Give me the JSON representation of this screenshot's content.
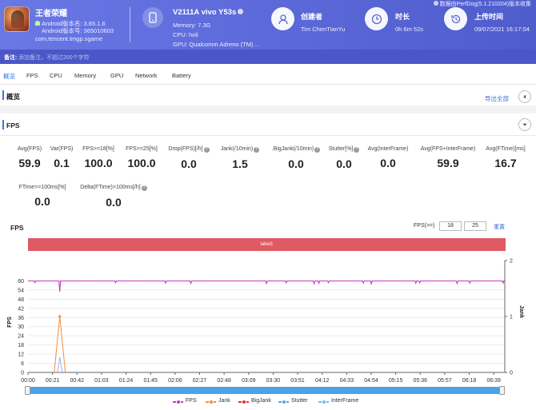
{
  "header": {
    "app_name": "王者荣耀",
    "android_version": "Android版本名: 3.65.1.6",
    "android_code": "Android版本号: 365010603",
    "package": "com.tencent.tmgp.sgame",
    "device_title": "V2111A vivo Y53s",
    "memory": "Memory: 7.3G",
    "cpu": "CPU: holi",
    "gpu": "GPU: Qualcomm Adreno (TM) ...",
    "creator_label": "创建者",
    "creator_value": "Tim ChenTianYu",
    "duration_label": "时长",
    "duration_value": "0h 6m 52s",
    "upload_label": "上传时间",
    "upload_value": "09/07/2021 16:17:04",
    "perfdog_note": "数据由PerfDog(5.1.210204)版本收集"
  },
  "remark": {
    "label": "备注:",
    "placeholder": "添加备注，不超过200个字符"
  },
  "tabs": [
    "概览",
    "FPS",
    "CPU",
    "Memory",
    "GPU",
    "Network",
    "Battery"
  ],
  "overview": {
    "title": "概览",
    "export_label": "导出全部"
  },
  "fps_section": {
    "title": "FPS"
  },
  "metrics": [
    {
      "label": "Avg(FPS)",
      "value": "59.9",
      "help": false
    },
    {
      "label": "Var(FPS)",
      "value": "0.1",
      "help": false
    },
    {
      "label": "FPS>=18[%]",
      "value": "100.0",
      "help": false
    },
    {
      "label": "FPS>=25[%]",
      "value": "100.0",
      "help": false
    },
    {
      "label": "Drop(FPS)[/h]",
      "value": "0.0",
      "help": true
    },
    {
      "label": "Jank(/10min)",
      "value": "1.5",
      "help": true
    },
    {
      "label": ".BigJank(/10min)",
      "value": "0.0",
      "help": true
    },
    {
      "label": "Stutter[%]",
      "value": "0.0",
      "help": true
    },
    {
      "label": "Avg(InterFrame)",
      "value": "0.0",
      "help": false
    },
    {
      "label": "Avg(FPS+InterFrame)",
      "value": "59.9",
      "help": false
    },
    {
      "label": "Avg(FTime)[ms]",
      "value": "16.7",
      "help": false
    },
    {
      "label": "FTime>=100ms[%]",
      "value": "0.0",
      "help": false
    },
    {
      "label": "Delta(FTime)>100ms[/h]",
      "value": "0.0",
      "help": true
    }
  ],
  "chart_controls": {
    "title": "FPS",
    "fps_ge_label": "FPS(>=)",
    "threshold_1": "18",
    "threshold_2": "25",
    "reset_label": "重置",
    "label_band": "label1"
  },
  "chart_data": {
    "type": "line",
    "title": "FPS",
    "ylabel": "FPS",
    "y2label": "Jank",
    "ylim": [
      0,
      66
    ],
    "y2lim": [
      0,
      2
    ],
    "yticks": [
      0,
      6,
      12,
      18,
      24,
      30,
      36,
      42,
      48,
      54,
      60
    ],
    "y2ticks": [
      0,
      1,
      2
    ],
    "x_ticks": [
      "00:00",
      "00:21",
      "00:42",
      "01:03",
      "01:24",
      "01:45",
      "02:06",
      "02:27",
      "02:48",
      "03:09",
      "03:30",
      "03:51",
      "04:12",
      "04:33",
      "04:54",
      "05:15",
      "05:36",
      "05:57",
      "06:18",
      "06:39"
    ],
    "x_range_seconds": [
      0,
      412
    ],
    "series": [
      {
        "name": "FPS",
        "color": "#c23fc0",
        "baseline": 60,
        "dips": [
          [
            40,
            53
          ],
          [
            9,
            58.8
          ],
          [
            110,
            58.8
          ],
          [
            173,
            58.5
          ],
          [
            205,
            58.4
          ],
          [
            300,
            58.3
          ],
          [
            325,
            58.7
          ],
          [
            360,
            58.2
          ],
          [
            366,
            58.4
          ],
          [
            378,
            58.8
          ],
          [
            422,
            58.6
          ],
          [
            432,
            58.1
          ],
          [
            488,
            58.5
          ],
          [
            493,
            58.7
          ],
          [
            540,
            58.3
          ],
          [
            556,
            58.5
          ],
          [
            598,
            58.6
          ]
        ]
      },
      {
        "name": "Jank",
        "color": "#f28c3c",
        "points": [
          [
            33,
            0
          ],
          [
            40,
            1
          ],
          [
            47,
            0
          ]
        ]
      },
      {
        "name": "BigJank",
        "color": "#e0312e",
        "points": []
      },
      {
        "name": "Stutter",
        "color": "#5aa7e8",
        "points": []
      },
      {
        "name": "InterFrame",
        "color": "#69c3ef",
        "points": []
      }
    ],
    "legend_position": "bottom"
  },
  "legend": [
    "FPS",
    "Jank",
    "BigJank",
    "Stutter",
    "InterFrame"
  ],
  "colors": {
    "accent": "#3d6fd8",
    "header": "#5b68d8",
    "label_band": "#e05a63",
    "scrollbar": "#4aa3e6"
  }
}
